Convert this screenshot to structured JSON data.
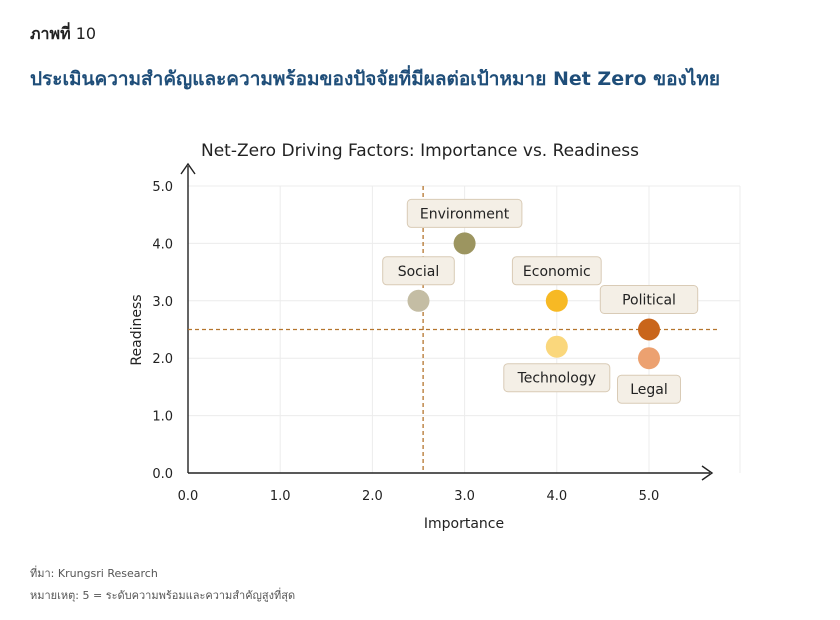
{
  "figure": {
    "label": "ภาพที่",
    "number": "10",
    "title": "ประเมินความสำคัญและความพร้อมของปัจจัยที่มีผลต่อเป้าหมาย Net Zero ของไทย"
  },
  "colors": {
    "title": "#1f4e79",
    "refline": "#b5752e",
    "grid": "#ececec",
    "label_bg": "#f4efe6",
    "label_border": "#d9cbb6"
  },
  "chart_data": {
    "type": "scatter",
    "title": "Net-Zero Driving Factors: Importance vs. Readiness",
    "xlabel": "Importance",
    "ylabel": "Readiness",
    "xlim": [
      0,
      5.5
    ],
    "ylim": [
      0,
      5
    ],
    "xticks": [
      "0.0",
      "1.0",
      "2.0",
      "3.0",
      "4.0",
      "5.0"
    ],
    "yticks": [
      "0.0",
      "1.0",
      "2.0",
      "3.0",
      "4.0",
      "5.0"
    ],
    "grid": true,
    "reference_lines": {
      "x": 2.55,
      "y": 2.5
    },
    "points": [
      {
        "name": "Environment",
        "x": 3.0,
        "y": 4.0,
        "color": "#9c9560",
        "label_pos": "above"
      },
      {
        "name": "Social",
        "x": 2.5,
        "y": 3.0,
        "color": "#c4bda4",
        "label_pos": "above"
      },
      {
        "name": "Economic",
        "x": 4.0,
        "y": 3.0,
        "color": "#f7b924",
        "label_pos": "above"
      },
      {
        "name": "Technology",
        "x": 4.0,
        "y": 2.2,
        "color": "#fad77c",
        "label_pos": "below"
      },
      {
        "name": "Political",
        "x": 5.0,
        "y": 2.5,
        "color": "#c9651b",
        "label_pos": "above"
      },
      {
        "name": "Legal",
        "x": 5.0,
        "y": 2.0,
        "color": "#eca170",
        "label_pos": "below"
      }
    ]
  },
  "footer": {
    "source": "ที่มา: Krungsri Research",
    "note": "หมายเหตุ: 5 = ระดับความพร้อมและความสำคัญสูงที่สุด"
  }
}
